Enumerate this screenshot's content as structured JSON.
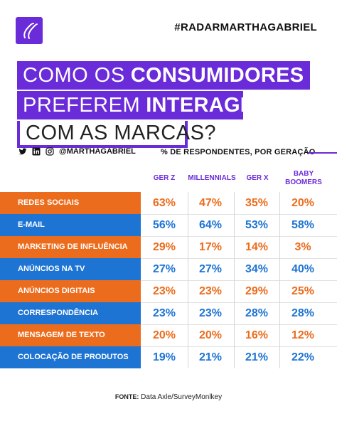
{
  "header": {
    "hashtag": "#RADARMARTHAGABRIEL",
    "logo_icon": "brand-monogram-icon"
  },
  "title": {
    "line1_thin": "COMO OS",
    "line1_bold": "CONSUMIDORES",
    "line2_thin": "PREFEREM",
    "line2_bold": "INTERAGIR",
    "line3_thin": "COM AS MARCAS?"
  },
  "social": {
    "icons": [
      "twitter-icon",
      "linkedin-icon",
      "instagram-icon"
    ],
    "handle": "@MARTHAGABRIEL"
  },
  "subtitle": "% DE RESPONDENTES,  POR GERAÇÃO",
  "table": {
    "headers": [
      "GER Z",
      "MILLENNIALS",
      "GER X",
      "BABY BOOMERS"
    ],
    "rows": [
      {
        "label": "REDES SOCIAIS",
        "values": [
          "63%",
          "47%",
          "35%",
          "20%"
        ],
        "color": "orange"
      },
      {
        "label": "E-MAIL",
        "values": [
          "56%",
          "64%",
          "53%",
          "58%"
        ],
        "color": "blue"
      },
      {
        "label": "MARKETING DE INFLUÊNCIA",
        "values": [
          "29%",
          "17%",
          "14%",
          "3%"
        ],
        "color": "orange"
      },
      {
        "label": "ANÚNCIOS NA TV",
        "values": [
          "27%",
          "27%",
          "34%",
          "40%"
        ],
        "color": "blue"
      },
      {
        "label": "ANÚNCIOS DIGITAIS",
        "values": [
          "23%",
          "23%",
          "29%",
          "25%"
        ],
        "color": "orange"
      },
      {
        "label": "CORRESPONDÊNCIA",
        "values": [
          "23%",
          "23%",
          "28%",
          "28%"
        ],
        "color": "blue"
      },
      {
        "label": "MENSAGEM DE TEXTO",
        "values": [
          "20%",
          "20%",
          "16%",
          "12%"
        ],
        "color": "orange"
      },
      {
        "label": "COLOCAÇÃO DE  PRODUTOS",
        "values": [
          "19%",
          "21%",
          "21%",
          "22%"
        ],
        "color": "blue"
      }
    ]
  },
  "source": {
    "label": "FONTE:",
    "text": "Data Axle/SurveyMonlkey"
  },
  "colors": {
    "purple": "#6a2bd9",
    "orange": "#ec6c1d",
    "blue": "#1e74d3"
  }
}
